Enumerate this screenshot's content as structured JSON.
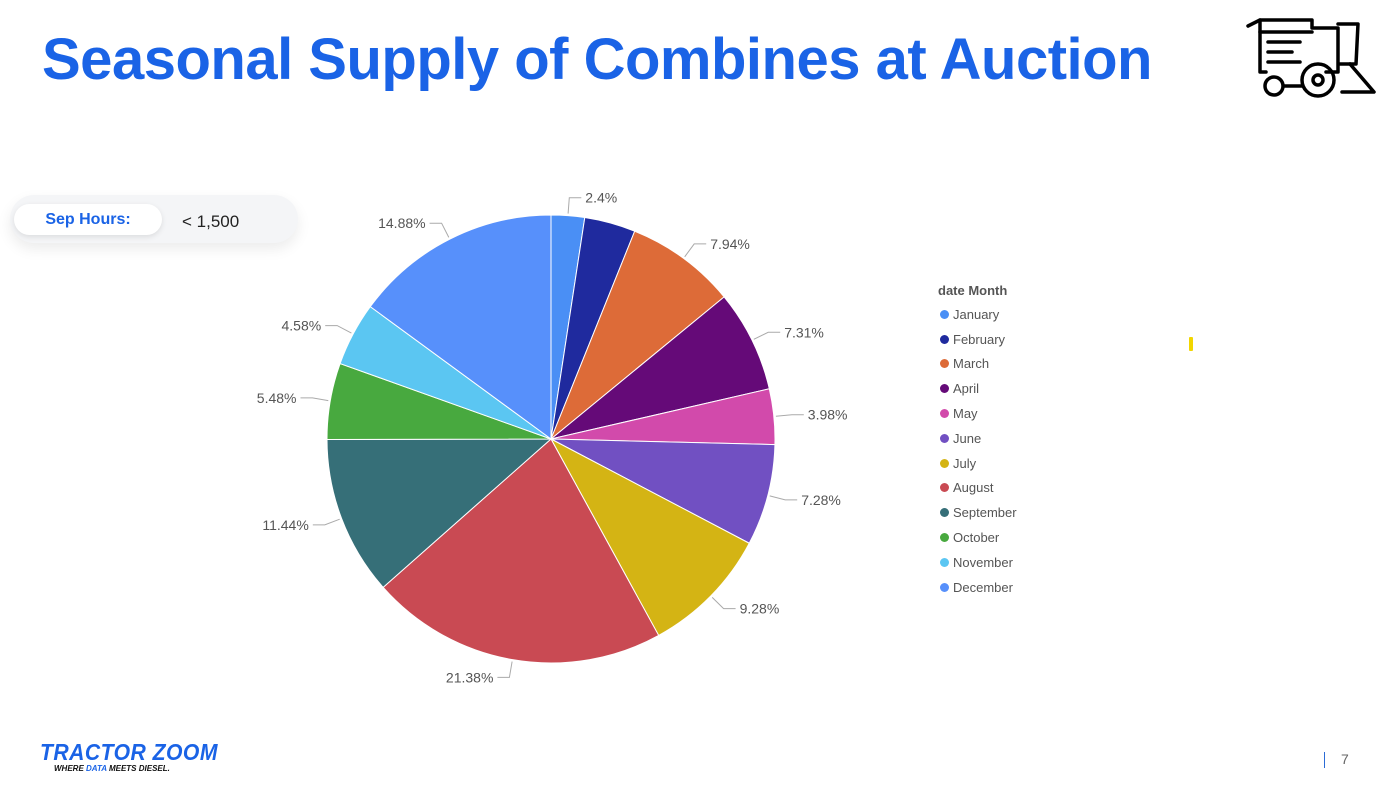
{
  "slide": {
    "title": "Seasonal Supply of Combines at Auction",
    "title_color": "#1a63e6",
    "page_number": "7"
  },
  "filter": {
    "label": "Sep Hours:",
    "value": "< 1,500",
    "label_color": "#1a63e6"
  },
  "logo": {
    "name": "TRACTOR ZOOM",
    "tagline_parts": [
      "WHERE ",
      "DATA",
      " MEETS DIESEL."
    ],
    "color": "#1a63e6"
  },
  "icons": {
    "combine": "combine-harvester-icon"
  },
  "chart_data": {
    "type": "pie",
    "legend_title": "date Month",
    "legend_position": "right",
    "start_angle_deg": 0,
    "direction": "clockwise",
    "slices": [
      {
        "label": "January",
        "value": 2.4,
        "display": "2.4%",
        "color": "#4a8ff5"
      },
      {
        "label": "February",
        "value": 3.67,
        "display": "",
        "color": "#1f2a9e"
      },
      {
        "label": "March",
        "value": 7.94,
        "display": "7.94%",
        "color": "#dd6b38"
      },
      {
        "label": "April",
        "value": 7.31,
        "display": "7.31%",
        "color": "#650a78"
      },
      {
        "label": "May",
        "value": 3.98,
        "display": "3.98%",
        "color": "#d24aab"
      },
      {
        "label": "June",
        "value": 7.28,
        "display": "7.28%",
        "color": "#7150c2"
      },
      {
        "label": "July",
        "value": 9.28,
        "display": "9.28%",
        "color": "#d4b414"
      },
      {
        "label": "August",
        "value": 21.38,
        "display": "21.38%",
        "color": "#c94a53"
      },
      {
        "label": "September",
        "value": 11.44,
        "display": "11.44%",
        "color": "#366f78"
      },
      {
        "label": "October",
        "value": 5.48,
        "display": "5.48%",
        "color": "#48a93f"
      },
      {
        "label": "November",
        "value": 4.58,
        "display": "4.58%",
        "color": "#5bc6f2"
      },
      {
        "label": "December",
        "value": 14.88,
        "display": "14.88%",
        "color": "#5790fb"
      }
    ]
  }
}
